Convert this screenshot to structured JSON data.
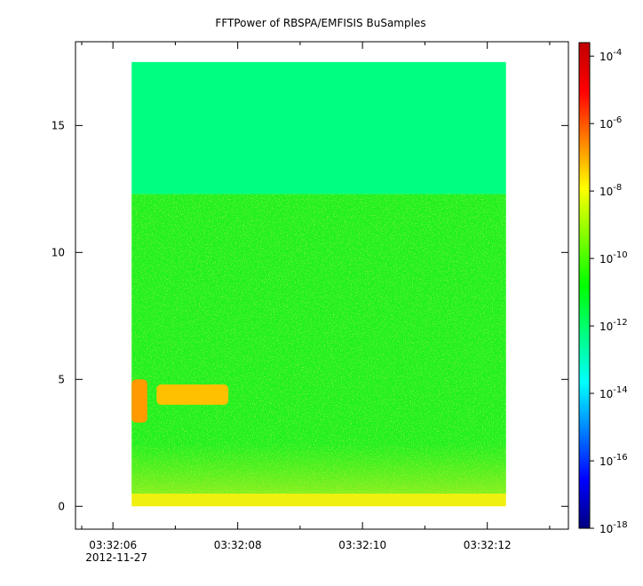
{
  "chart_data": {
    "type": "heatmap",
    "title": "FFTPower of RBSPA/EMFISIS  BuSamples",
    "xlabel": "",
    "ylabel": "",
    "x_ticks": [
      {
        "t": 6,
        "label": "03:32:06",
        "sublabel": "2012-11-27"
      },
      {
        "t": 8,
        "label": "03:32:08",
        "sublabel": ""
      },
      {
        "t": 10,
        "label": "03:32:10",
        "sublabel": ""
      },
      {
        "t": 12,
        "label": "03:32:12",
        "sublabel": ""
      }
    ],
    "x_minor_ticks": [
      5.5,
      7,
      9,
      11,
      13
    ],
    "xlim": [
      5.4,
      13.3
    ],
    "data_x_range": [
      6.3,
      12.3
    ],
    "y_ticks": [
      {
        "v": 0,
        "label": "0"
      },
      {
        "v": 5,
        "label": "5"
      },
      {
        "v": 10,
        "label": "10"
      },
      {
        "v": 15,
        "label": "15"
      }
    ],
    "ylim": [
      -0.9,
      18.3
    ],
    "data_y_range": [
      0,
      17.5
    ],
    "colorbar": {
      "scale": "log",
      "range_exp": [
        -18,
        -3.6
      ],
      "ticks": [
        {
          "exp": -4,
          "base": "10",
          "power": "-4"
        },
        {
          "exp": -6,
          "base": "10",
          "power": "-6"
        },
        {
          "exp": -8,
          "base": "10",
          "power": "-8"
        },
        {
          "exp": -10,
          "base": "10",
          "power": "-10"
        },
        {
          "exp": -12,
          "base": "10",
          "power": "-12"
        },
        {
          "exp": -14,
          "base": "10",
          "power": "-14"
        },
        {
          "exp": -16,
          "base": "10",
          "power": "-16"
        },
        {
          "exp": -18,
          "base": "10",
          "power": "-18"
        }
      ],
      "colors": [
        "#00007f",
        "#0000ff",
        "#007fff",
        "#00ffff",
        "#00ff80",
        "#00ff00",
        "#80ff00",
        "#ffff00",
        "#ff8000",
        "#ff0000",
        "#c00000"
      ]
    },
    "regions": [
      {
        "name": "upper-band",
        "y_range": [
          12.3,
          17.5
        ],
        "level_exp": -12.5,
        "color": "#00ff80"
      },
      {
        "name": "middle-band",
        "y_range": [
          0.5,
          12.3
        ],
        "level_exp": -10.5,
        "color": "#20f020"
      },
      {
        "name": "low-frequency-band",
        "y_range": [
          0,
          0.5
        ],
        "level_exp": -8.5,
        "color": "#f0f010"
      },
      {
        "name": "emission-burst-1",
        "x_range": [
          6.3,
          6.55
        ],
        "y_range": [
          3.3,
          5.0
        ],
        "level_exp": -7,
        "color": "#ff9a00"
      },
      {
        "name": "emission-burst-2",
        "x_range": [
          6.7,
          7.85
        ],
        "y_range": [
          4.0,
          4.8
        ],
        "level_exp": -7.5,
        "color": "#ffc000"
      }
    ]
  }
}
